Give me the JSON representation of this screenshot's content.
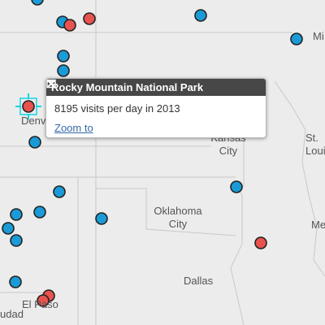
{
  "map": {
    "cities": [
      {
        "id": "denver",
        "label": "Denver"
      },
      {
        "id": "kansas-city",
        "label": "Kansas\nCity"
      },
      {
        "id": "st-louis",
        "label": "St.\nLouis"
      },
      {
        "id": "oklahoma-city",
        "label": "Oklahoma\nCity"
      },
      {
        "id": "dallas",
        "label": "Dallas"
      },
      {
        "id": "el-paso",
        "label": "El Paso"
      },
      {
        "id": "ciudad",
        "label": "udad"
      },
      {
        "id": "milwaukee",
        "label": "Mi"
      },
      {
        "id": "memphis",
        "label": "Me"
      }
    ],
    "colors": {
      "marker_blue": "#1a9bd7",
      "marker_red": "#e8534f",
      "highlight": "#14d6e3"
    }
  },
  "popup": {
    "title": "Rocky Mountain National Park",
    "description": "8195 visits per day in 2013",
    "zoom_link": "Zoom to",
    "maximize_icon": "maximize-icon",
    "close_icon": "close-icon"
  }
}
